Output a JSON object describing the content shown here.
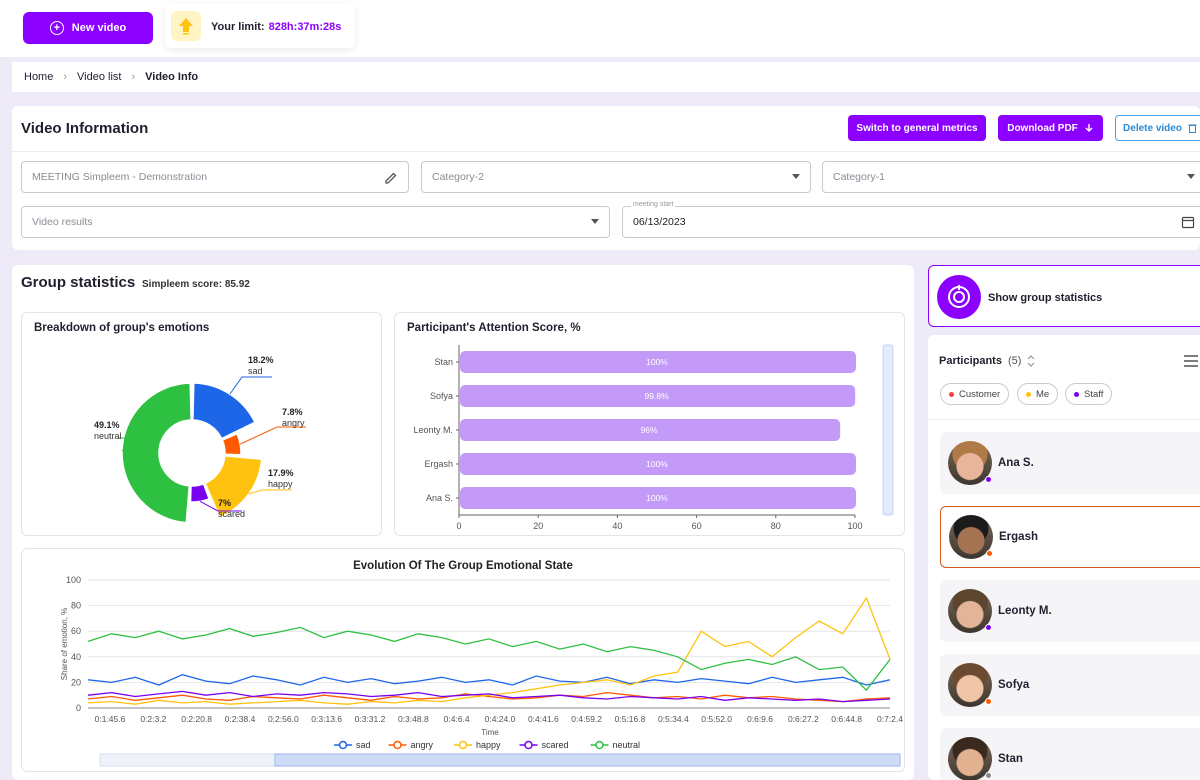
{
  "topbar": {
    "new_video_label": "New video",
    "limit_label": "Your limit:",
    "limit_value": "828h:37m:28s"
  },
  "breadcrumb": [
    "Home",
    "Video list",
    "Video Info"
  ],
  "video_info": {
    "title": "Video Information",
    "buttons": {
      "switch_metrics": "Switch to general metrics",
      "download_pdf": "Download PDF",
      "delete_video": "Delete video"
    },
    "fields": {
      "name_value": "MEETING Simpleem - Demonstration",
      "category2_placeholder": "Category-2",
      "category1_placeholder": "Category-1",
      "results_placeholder": "Video results",
      "meeting_start_label": "meeting start",
      "meeting_start_value": "06/13/2023"
    }
  },
  "group_stats": {
    "title": "Group statistics",
    "score_label": "Simpleem score: 85.92"
  },
  "colors": {
    "accent": "#8b00ff",
    "sad": "#1e66e8",
    "angry": "#ff5a00",
    "happy": "#ffc20e",
    "scared": "#7a00f0",
    "neutral": "#2ec040",
    "customer": "#ff3b3b",
    "me": "#ffc20e",
    "staff": "#7a00f0"
  },
  "chart_data": [
    {
      "type": "pie",
      "title": "Breakdown of group's emotions",
      "slices": [
        {
          "name": "sad",
          "value": 18.2,
          "label": "18.2%"
        },
        {
          "name": "angry",
          "value": 7.8,
          "label": "7.8%"
        },
        {
          "name": "happy",
          "value": 17.9,
          "label": "17.9%"
        },
        {
          "name": "scared",
          "value": 7.0,
          "label": "7%"
        },
        {
          "name": "neutral",
          "value": 49.1,
          "label": "49.1%"
        }
      ]
    },
    {
      "type": "bar",
      "title": "Participant's Attention Score, %",
      "orientation": "horizontal",
      "categories": [
        "Stan",
        "Sofya",
        "Leonty M.",
        "Ergash",
        "Ana S."
      ],
      "values": [
        100,
        99.8,
        96,
        100,
        100
      ],
      "value_labels": [
        "100%",
        "99.8%",
        "96%",
        "100%",
        "100%"
      ],
      "xlim": [
        0,
        100
      ],
      "xticks": [
        0,
        20,
        40,
        60,
        80,
        100
      ]
    },
    {
      "type": "line",
      "title": "Evolution Of The Group Emotional State",
      "xlabel": "Time",
      "ylabel": "Share of emotion, %",
      "ylim": [
        0,
        100
      ],
      "yticks": [
        0,
        20,
        40,
        60,
        80,
        100
      ],
      "xticks": [
        "0:1:45.6",
        "0:2:3.2",
        "0:2:20.8",
        "0:2:38.4",
        "0:2:56.0",
        "0:3:13.6",
        "0:3:31.2",
        "0:3:48.8",
        "0:4:6.4",
        "0:4:24.0",
        "0:4:41.6",
        "0:4:59.2",
        "0:5:16.8",
        "0:5:34.4",
        "0:5:52.0",
        "0:6:9.6",
        "0:6:27.2",
        "0:6:44.8",
        "0:7:2.4"
      ],
      "series": [
        {
          "name": "sad",
          "values": [
            22,
            20,
            24,
            18,
            26,
            21,
            19,
            25,
            22,
            18,
            24,
            20,
            23,
            19,
            21,
            24,
            20,
            22,
            18,
            25,
            21,
            20,
            24,
            19,
            22,
            20,
            23,
            21,
            19,
            24,
            20,
            22,
            24,
            18,
            22
          ]
        },
        {
          "name": "angry",
          "values": [
            7,
            9,
            6,
            8,
            10,
            7,
            6,
            9,
            8,
            7,
            10,
            8,
            6,
            9,
            7,
            8,
            11,
            9,
            7,
            8,
            10,
            9,
            12,
            10,
            8,
            9,
            7,
            10,
            8,
            9,
            7,
            6,
            5,
            7,
            8
          ]
        },
        {
          "name": "happy",
          "values": [
            4,
            5,
            3,
            6,
            4,
            5,
            3,
            4,
            5,
            6,
            4,
            3,
            5,
            4,
            6,
            5,
            8,
            10,
            12,
            15,
            18,
            20,
            22,
            18,
            25,
            28,
            60,
            48,
            52,
            40,
            55,
            68,
            58,
            86,
            38
          ]
        },
        {
          "name": "scared",
          "values": [
            10,
            12,
            9,
            11,
            13,
            10,
            12,
            9,
            11,
            10,
            12,
            11,
            9,
            10,
            12,
            9,
            10,
            11,
            8,
            9,
            10,
            8,
            7,
            9,
            8,
            7,
            9,
            6,
            8,
            7,
            6,
            7,
            5,
            6,
            7
          ]
        },
        {
          "name": "neutral",
          "values": [
            52,
            58,
            55,
            60,
            54,
            57,
            62,
            56,
            59,
            63,
            55,
            60,
            57,
            52,
            58,
            55,
            50,
            54,
            48,
            52,
            46,
            50,
            44,
            48,
            45,
            40,
            30,
            35,
            38,
            34,
            40,
            30,
            32,
            14,
            38
          ]
        }
      ]
    }
  ],
  "participants": {
    "title": "Participants",
    "count": "(5)",
    "filters": [
      {
        "label": "Customer",
        "color": "#ff3b3b"
      },
      {
        "label": "Me",
        "color": "#ffc20e"
      },
      {
        "label": "Staff",
        "color": "#7a00f0"
      }
    ],
    "list": [
      {
        "name": "Ana S.",
        "status_color": "#7a00f0",
        "skin": "#e8b59a",
        "hair": "#b07a48"
      },
      {
        "name": "Ergash",
        "status_color": "#ff5a00",
        "skin": "#a57453",
        "hair": "#1b1b1b"
      },
      {
        "name": "Leonty M.",
        "status_color": "#7a00f0",
        "skin": "#e3b497",
        "hair": "#5d4530"
      },
      {
        "name": "Sofya",
        "status_color": "#ff5a00",
        "skin": "#f0c4a6",
        "hair": "#6b4a2f"
      },
      {
        "name": "Stan",
        "status_color": "#888888",
        "skin": "#e2b190",
        "hair": "#3a2a1e"
      }
    ],
    "show_group_stats_label": "Show group statistics"
  }
}
